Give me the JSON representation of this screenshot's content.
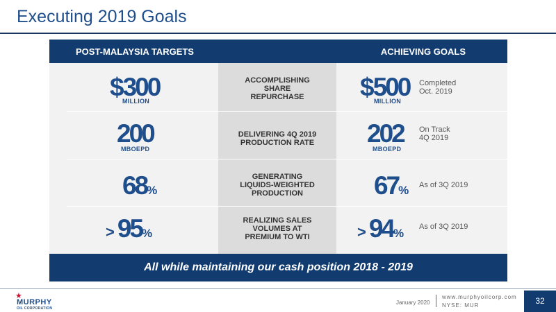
{
  "title": "Executing 2019 Goals",
  "header": {
    "left": "POST-MALAYSIA TARGETS",
    "right": "ACHIEVING GOALS"
  },
  "rows": [
    {
      "target_prefix": "$",
      "target_value": "300",
      "target_unit": "MILLION",
      "goal": [
        "ACCOMPLISHING",
        "SHARE",
        "REPURCHASE"
      ],
      "achieved_prefix": "$",
      "achieved_value": "500",
      "achieved_unit": "MILLION",
      "note": [
        "Completed",
        "Oct. 2019"
      ]
    },
    {
      "target_value": "200",
      "target_unit": "MBOEPD",
      "goal": [
        "DELIVERING 4Q 2019",
        "PRODUCTION RATE"
      ],
      "achieved_value": "202",
      "achieved_unit": "MBOEPD",
      "note": [
        "On Track",
        "4Q 2019"
      ]
    },
    {
      "target_value": "68",
      "target_suffix": "%",
      "goal": [
        "GENERATING",
        "LIQUIDS-WEIGHTED",
        "PRODUCTION"
      ],
      "achieved_value": "67",
      "achieved_suffix": "%",
      "note": [
        "As of 3Q 2019"
      ]
    },
    {
      "target_prefix": ">",
      "target_value": "95",
      "target_suffix": "%",
      "goal": [
        "REALIZING SALES",
        "VOLUMES AT",
        "PREMIUM TO WTI"
      ],
      "achieved_prefix": ">",
      "achieved_value": "94",
      "achieved_suffix": "%",
      "note": [
        "As of 3Q 2019"
      ]
    }
  ],
  "footer_banner": "All while maintaining our cash position 2018 - 2019",
  "footer": {
    "logo_word": "MURPHY",
    "logo_sub": "OIL CORPORATION",
    "date": "January 2020",
    "website": "www.murphyoilcorp.com",
    "ticker": "NYSE: MUR",
    "page_number": "32"
  },
  "colors": {
    "brand_blue": "#123b70",
    "accent_blue": "#1f4e8c",
    "logo_red": "#c8102e"
  },
  "icons": {
    "logo": "star-icon"
  }
}
